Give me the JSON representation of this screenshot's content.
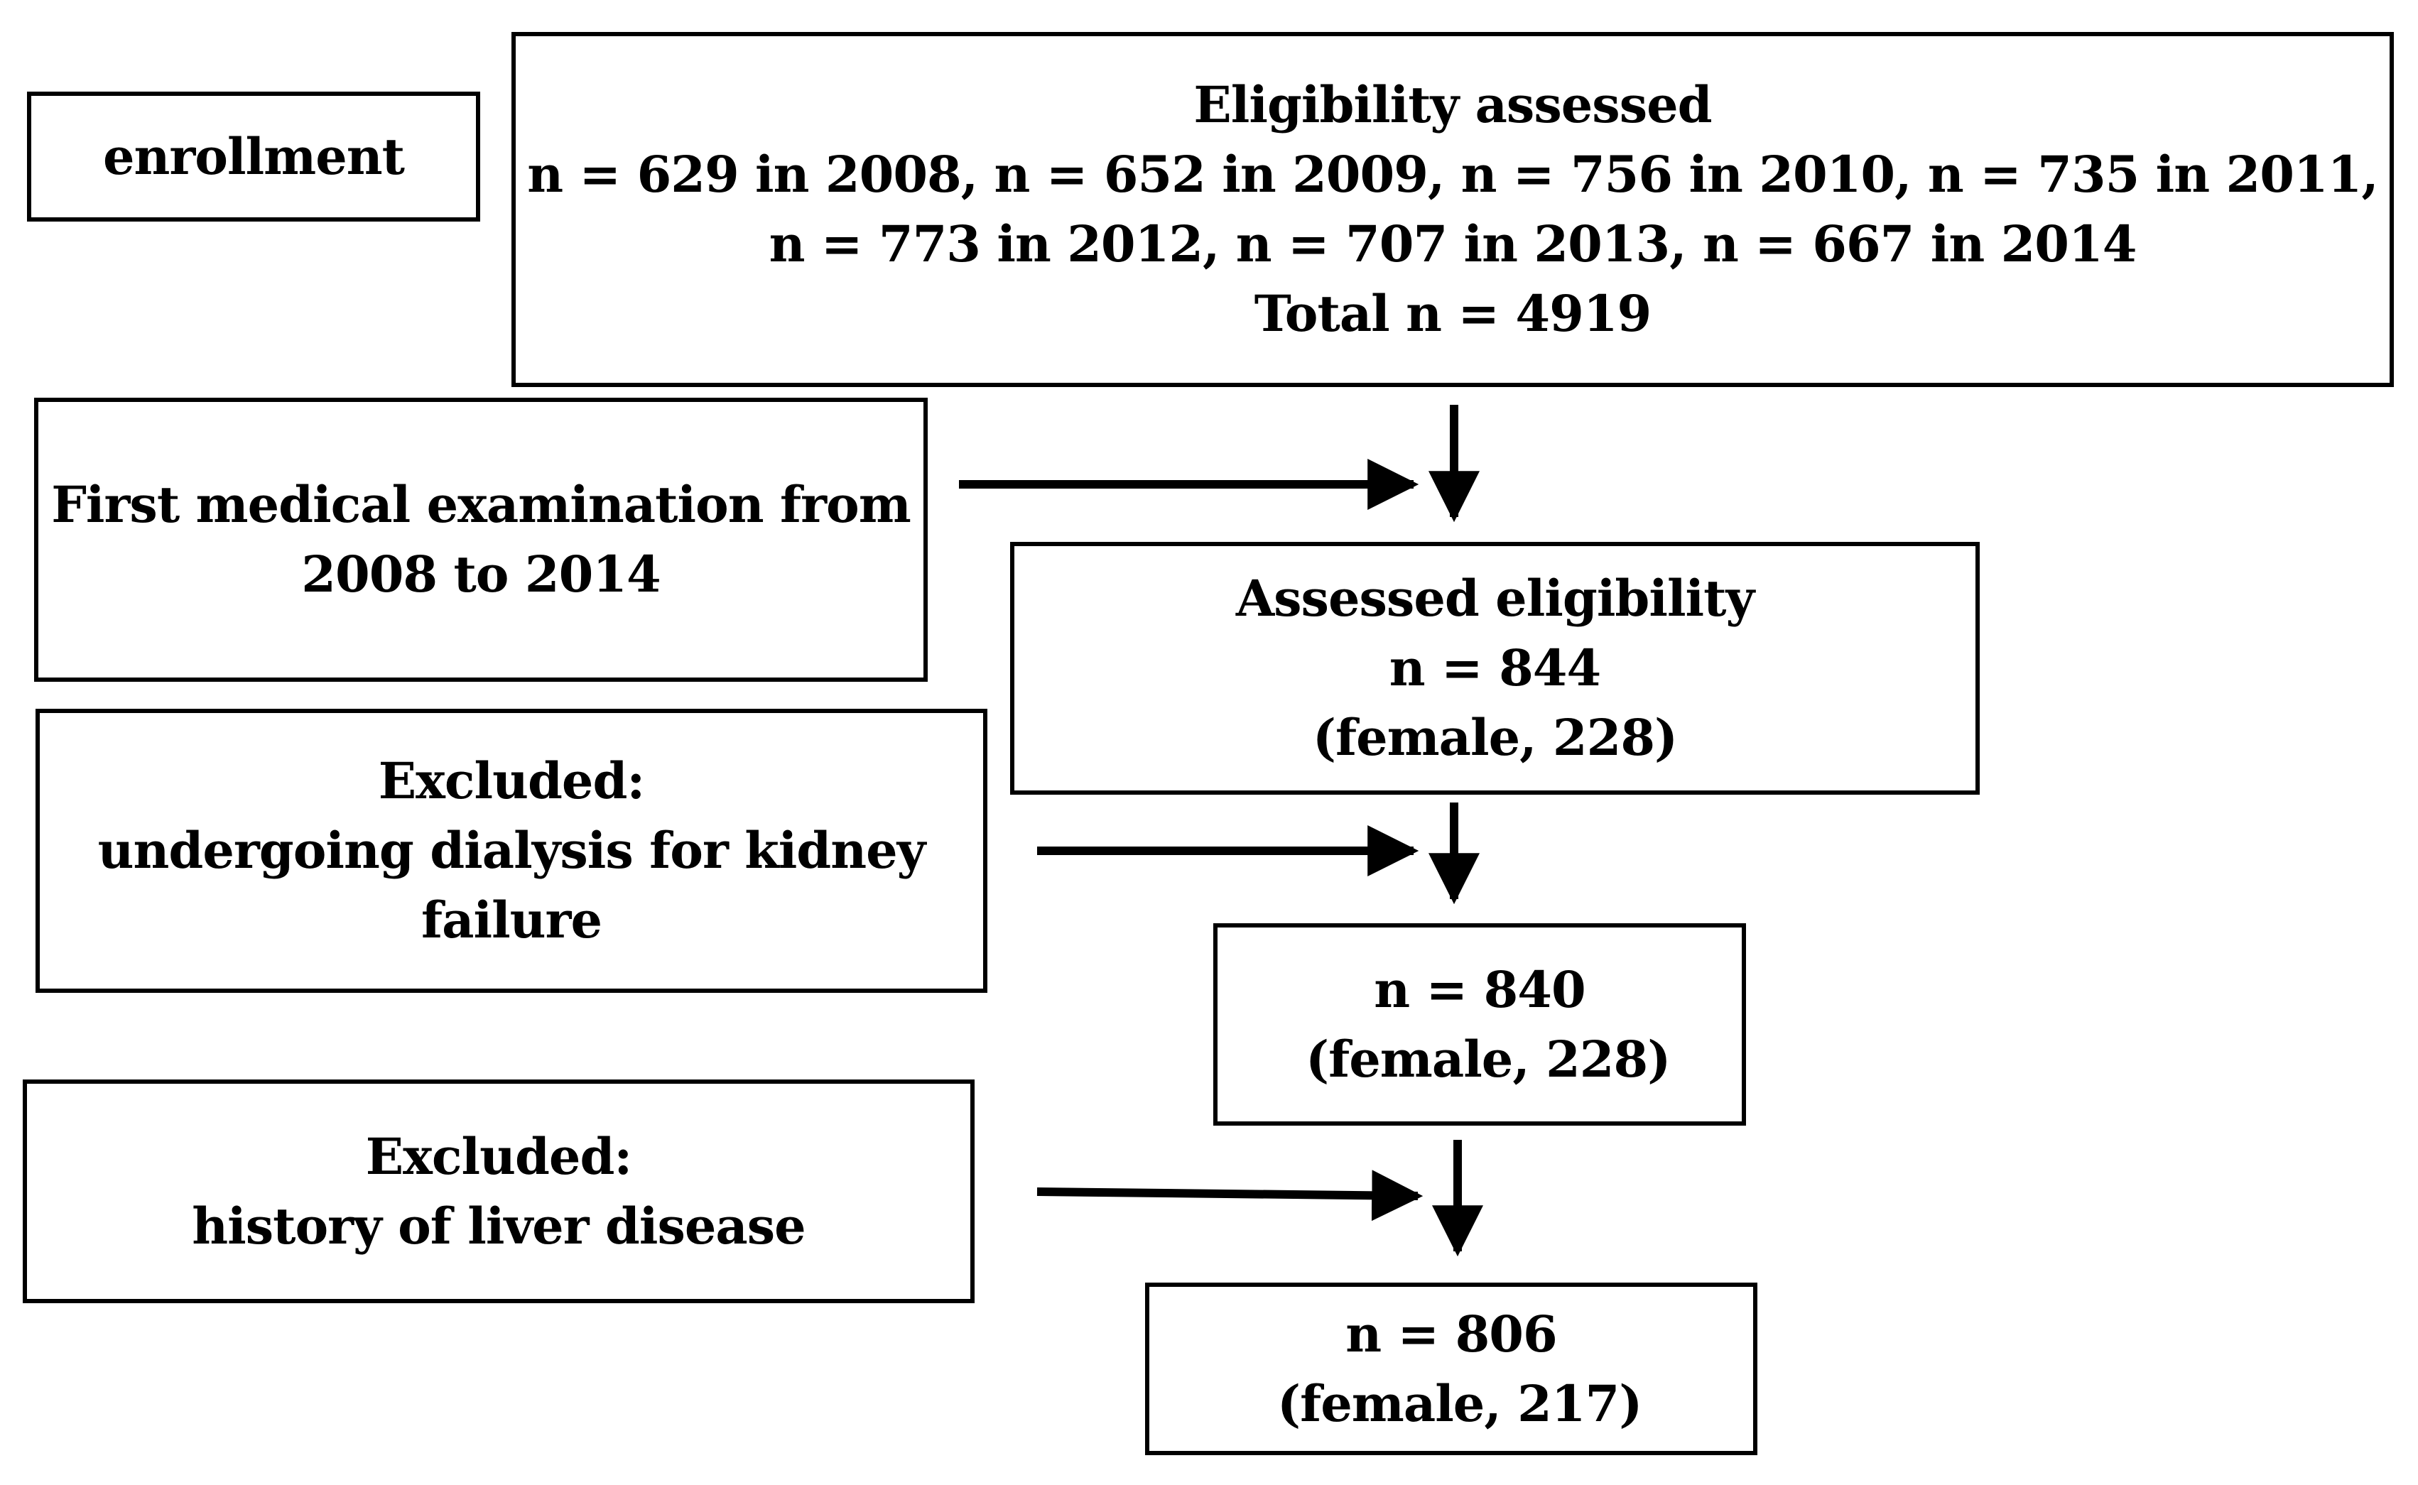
{
  "diagram": {
    "enrollment": {
      "label": "enrollment"
    },
    "eligibility": {
      "lines": [
        "Eligibility assessed",
        "n = 629 in 2008, n = 652 in 2009, n = 756 in 2010, n = 735 in 2011,",
        "n = 773 in 2012, n = 707 in 2013, n = 667 in 2014",
        "Total n = 4919"
      ]
    },
    "first_exam": {
      "lines": [
        "First medical examination from",
        "2008 to 2014"
      ]
    },
    "assessed": {
      "lines": [
        "Assessed eligibility",
        "n = 844",
        "(female, 228)"
      ]
    },
    "excluded_dialysis": {
      "lines": [
        "Excluded:",
        "undergoing dialysis for kidney",
        "failure"
      ]
    },
    "n840": {
      "lines": [
        "n = 840",
        " (female, 228)"
      ]
    },
    "excluded_liver": {
      "lines": [
        "Excluded:",
        "history of liver disease"
      ]
    },
    "n806": {
      "lines": [
        "n = 806",
        " (female, 217)"
      ]
    }
  }
}
